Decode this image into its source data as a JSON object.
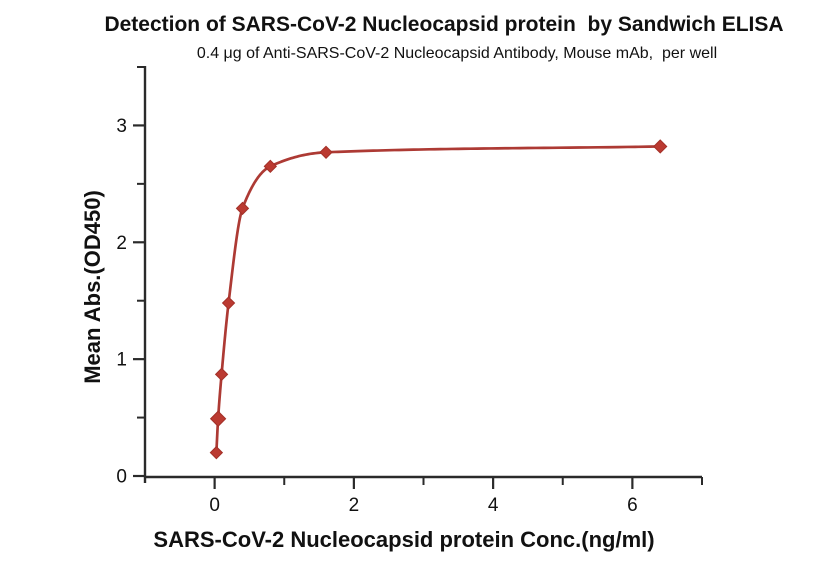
{
  "chart_data": {
    "type": "line",
    "title": "Detection of SARS-CoV-2 Nucleocapsid protein  by Sandwich ELISA",
    "subtitle": "0.4 μg of Anti-SARS-CoV-2 Nucleocapsid Antibody, Mouse mAb,  per well",
    "xlabel": "SARS-CoV-2 Nucleocapsid protein Conc.(ng/ml)",
    "ylabel": "Mean Abs.(OD450)",
    "series_name": "Anti-SARS-CoV-2 Nucleocapsid Antibody, Mouse mAb",
    "x": [
      0.025,
      0.05,
      0.1,
      0.2,
      0.4,
      0.8,
      1.6,
      6.4
    ],
    "y": [
      0.2,
      0.49,
      0.87,
      1.48,
      2.29,
      2.65,
      2.77,
      2.82
    ],
    "marker_sizes": [
      12,
      15,
      12,
      12,
      12,
      12,
      12,
      13
    ],
    "marker_shape": "diamond",
    "xlim": [
      -1,
      7
    ],
    "ylim": [
      0,
      3.5
    ],
    "xticks": {
      "major": [
        0,
        2,
        4,
        6
      ],
      "minor": [
        1,
        3,
        5,
        7
      ]
    },
    "yticks": {
      "major": [
        0,
        1,
        2,
        3
      ],
      "minor": [
        0.5,
        1.5,
        2.5,
        3.5
      ]
    },
    "tick_label_format": "integer",
    "grid": false,
    "legend": "none",
    "colors": {
      "line": "#ad3a34",
      "marker": "#bb3a31",
      "marker_edge": "#a33028",
      "axis": "#2a2a2a",
      "text": "#111111",
      "background": "#ffffff"
    }
  }
}
